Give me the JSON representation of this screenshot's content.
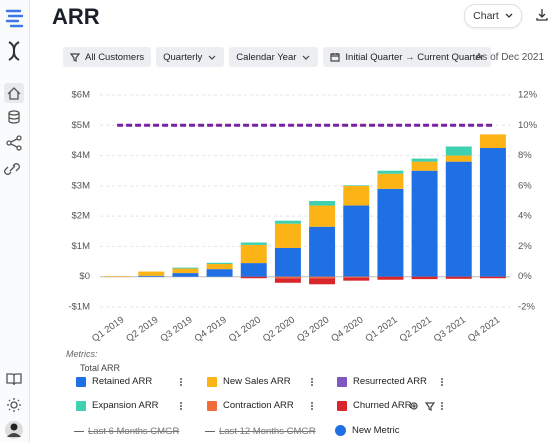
{
  "header": {
    "title": "ARR",
    "view_button": "Chart"
  },
  "filters": [
    "All Customers",
    "Quarterly",
    "Calendar Year",
    "Initial Quarter → Current Quarter"
  ],
  "as_of": "As of Dec 2021",
  "chart_data": {
    "type": "bar",
    "stacked": true,
    "categories": [
      "Q1 2019",
      "Q2 2019",
      "Q3 2019",
      "Q4 2019",
      "Q1 2020",
      "Q2 2020",
      "Q3 2020",
      "Q4 2020",
      "Q1 2021",
      "Q2 2021",
      "Q3 2021",
      "Q4 2021"
    ],
    "series": [
      {
        "name": "Retained ARR",
        "color": "#1f6fe5",
        "values": [
          0,
          30000,
          120000,
          250000,
          450000,
          950000,
          1650000,
          2350000,
          2900000,
          3500000,
          3800000,
          4250000
        ]
      },
      {
        "name": "New Sales ARR",
        "color": "#fbb316",
        "values": [
          20000,
          140000,
          150000,
          170000,
          600000,
          800000,
          700000,
          650000,
          500000,
          300000,
          200000,
          450000
        ]
      },
      {
        "name": "Resurrected ARR",
        "color": "#7e57c2",
        "values": [
          0,
          0,
          0,
          0,
          0,
          0,
          0,
          0,
          0,
          0,
          0,
          0
        ]
      },
      {
        "name": "Expansion ARR",
        "color": "#3fd0b0",
        "values": [
          0,
          0,
          30000,
          40000,
          80000,
          100000,
          150000,
          20000,
          100000,
          100000,
          300000,
          0
        ]
      },
      {
        "name": "Contraction ARR",
        "color": "#f26b3a",
        "values": [
          0,
          0,
          0,
          0,
          0,
          -50000,
          -50000,
          -30000,
          0,
          0,
          0,
          0
        ]
      },
      {
        "name": "Churned ARR",
        "color": "#d8262b",
        "values": [
          0,
          0,
          0,
          0,
          -50000,
          -150000,
          -200000,
          -100000,
          -100000,
          -80000,
          -70000,
          -50000
        ]
      }
    ],
    "line": {
      "axis": "y2",
      "color": "#7a1fa2",
      "dashed": true,
      "values": [
        10,
        10,
        10,
        10,
        10,
        10,
        10,
        10,
        10,
        10,
        10,
        10
      ]
    },
    "ylim": [
      -1000000,
      6000000
    ],
    "yticks": [
      {
        "value": -1000000,
        "label": "-$1M"
      },
      {
        "value": 0,
        "label": "$0"
      },
      {
        "value": 1000000,
        "label": "$1M"
      },
      {
        "value": 2000000,
        "label": "$2M"
      },
      {
        "value": 3000000,
        "label": "$3M"
      },
      {
        "value": 4000000,
        "label": "$4M"
      },
      {
        "value": 5000000,
        "label": "$5M"
      },
      {
        "value": 6000000,
        "label": "$6M"
      }
    ],
    "y2lim": [
      -2,
      12
    ],
    "y2ticks": [
      {
        "value": -2,
        "label": "-2%"
      },
      {
        "value": 0,
        "label": "0%"
      },
      {
        "value": 2,
        "label": "2%"
      },
      {
        "value": 4,
        "label": "4%"
      },
      {
        "value": 6,
        "label": "6%"
      },
      {
        "value": 8,
        "label": "8%"
      },
      {
        "value": 10,
        "label": "10%"
      },
      {
        "value": 12,
        "label": "12%"
      }
    ],
    "grid": true
  },
  "metrics": {
    "label": "Metrics:",
    "total": "Total ARR",
    "disabled": [
      "Last 6 Months CMGR",
      "Last 12 Months CMGR"
    ],
    "add": "New Metric"
  }
}
